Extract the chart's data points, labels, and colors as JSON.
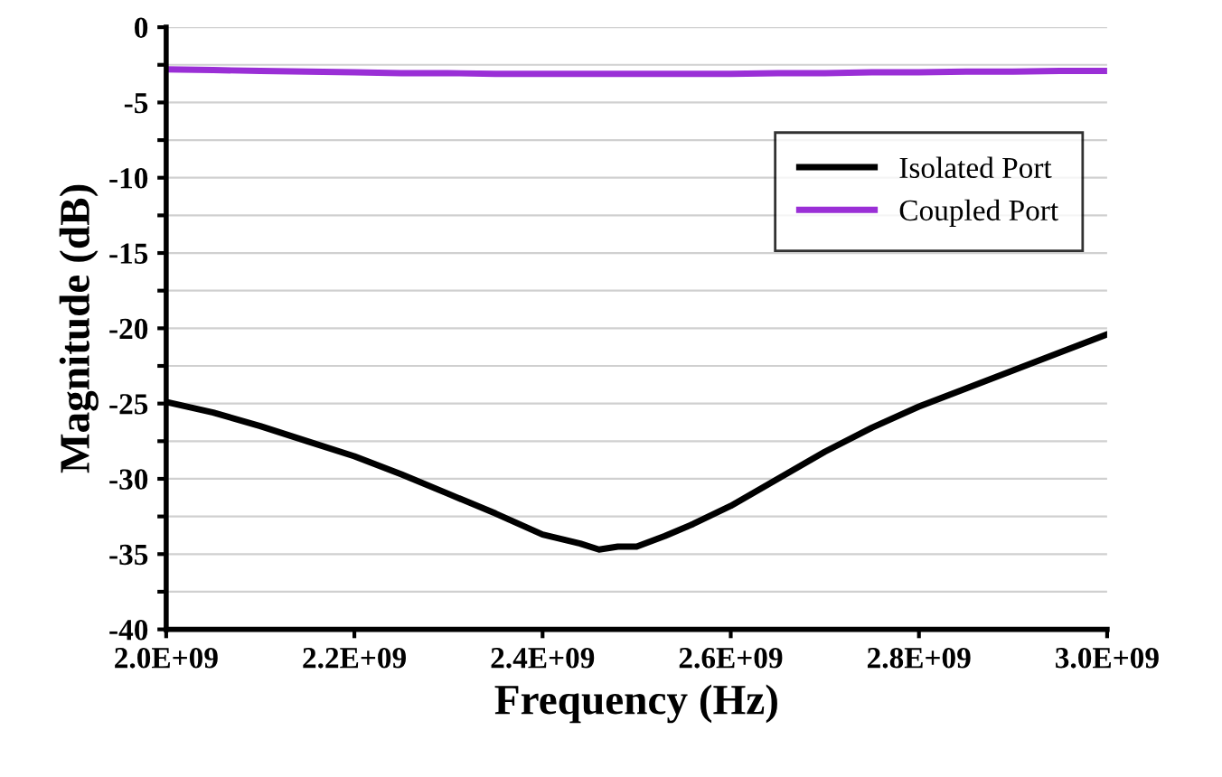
{
  "chart_data": {
    "type": "line",
    "xlabel": "Frequency (Hz)",
    "ylabel": "Magnitude (dB)",
    "xlim": [
      2000000000,
      3000000000
    ],
    "xticks": [
      {
        "value": 2000000000,
        "label": "2.0E+09"
      },
      {
        "value": 2200000000,
        "label": "2.2E+09"
      },
      {
        "value": 2400000000,
        "label": "2.4E+09"
      },
      {
        "value": 2600000000,
        "label": "2.6E+09"
      },
      {
        "value": 2800000000,
        "label": "2.8E+09"
      },
      {
        "value": 3000000000,
        "label": "3.0E+09"
      }
    ],
    "ylim": [
      -40,
      0
    ],
    "yticks": [
      -40,
      {
        "value": -37.5,
        "label": null
      },
      -35,
      {
        "value": -32.5,
        "label": null
      },
      -30,
      {
        "value": -27.5,
        "label": null
      },
      -25,
      {
        "value": -22.5,
        "label": null
      },
      -20,
      {
        "value": -17.5,
        "label": null
      },
      -15,
      {
        "value": -12.5,
        "label": null
      },
      -10,
      {
        "value": -7.5,
        "label": null
      },
      -5,
      {
        "value": -2.5,
        "label": null
      },
      0
    ],
    "grid": "y",
    "legend": "top right",
    "marker": "none",
    "line_style": "solid",
    "x": [
      2000000000,
      2050000000,
      2100000000,
      2150000000,
      2200000000,
      2250000000,
      2300000000,
      2350000000,
      2400000000,
      2440000000,
      2460000000,
      2480000000,
      2500000000,
      2530000000,
      2560000000,
      2600000000,
      2650000000,
      2700000000,
      2750000000,
      2800000000,
      2850000000,
      2900000000,
      2950000000,
      3000000000
    ],
    "series": [
      {
        "name": "Isolated Port",
        "color": "#000000",
        "values": [
          -24.9,
          -25.6,
          -26.5,
          -27.5,
          -28.5,
          -29.7,
          -31.0,
          -32.3,
          -33.7,
          -34.3,
          -34.7,
          -34.5,
          -34.5,
          -33.8,
          -33.0,
          -31.8,
          -30.0,
          -28.2,
          -26.6,
          -25.2,
          -24.0,
          -22.8,
          -21.6,
          -20.4
        ]
      },
      {
        "name": "Coupled Port",
        "color": "#9a2fd6",
        "values": [
          -2.8,
          -2.85,
          -2.9,
          -2.95,
          -3.0,
          -3.05,
          -3.05,
          -3.1,
          -3.1,
          -3.1,
          -3.1,
          -3.1,
          -3.1,
          -3.1,
          -3.1,
          -3.1,
          -3.05,
          -3.05,
          -3.0,
          -3.0,
          -2.95,
          -2.95,
          -2.9,
          -2.9
        ]
      }
    ]
  }
}
